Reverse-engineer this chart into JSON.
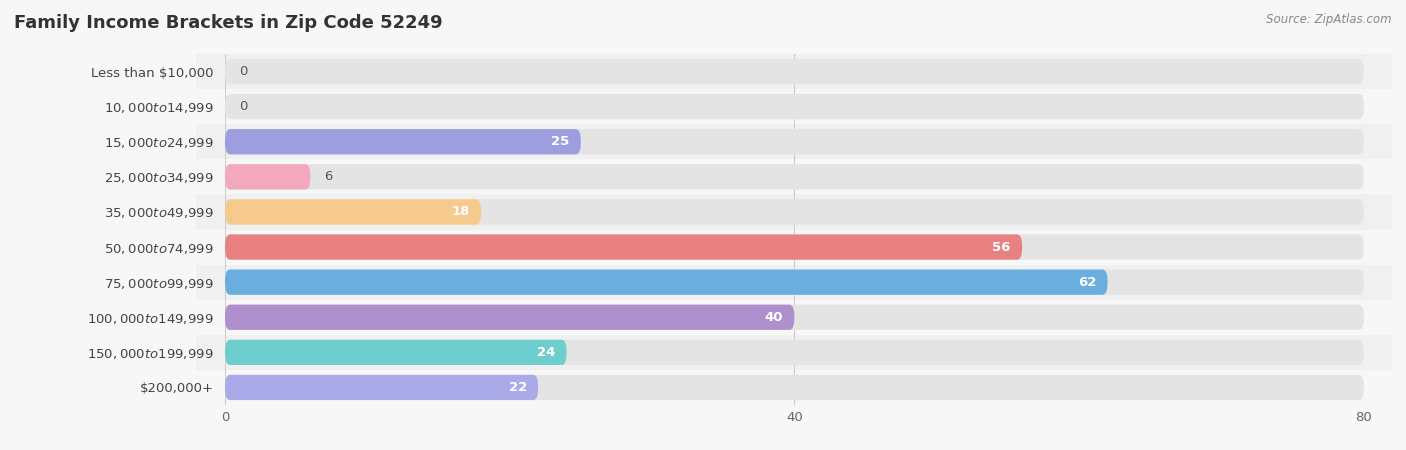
{
  "title": "Family Income Brackets in Zip Code 52249",
  "source": "Source: ZipAtlas.com",
  "categories": [
    "Less than $10,000",
    "$10,000 to $14,999",
    "$15,000 to $24,999",
    "$25,000 to $34,999",
    "$35,000 to $49,999",
    "$50,000 to $74,999",
    "$75,000 to $99,999",
    "$100,000 to $149,999",
    "$150,000 to $199,999",
    "$200,000+"
  ],
  "values": [
    0,
    0,
    25,
    6,
    18,
    56,
    62,
    40,
    24,
    22
  ],
  "bar_colors": [
    "#cbaed6",
    "#7ececa",
    "#9d9ee0",
    "#f4a8bc",
    "#f5ca8c",
    "#e88282",
    "#6aaee0",
    "#b090cc",
    "#6ecece",
    "#aaaae8"
  ],
  "xlim": [
    0,
    80
  ],
  "xticks": [
    0,
    40,
    80
  ],
  "bg_color": "#f7f7f7",
  "bar_bg_color": "#e4e4e4",
  "row_bg_even": "#f0f0f0",
  "row_bg_odd": "#f7f7f7",
  "title_fontsize": 13,
  "label_fontsize": 9.5,
  "value_fontsize": 9.5
}
